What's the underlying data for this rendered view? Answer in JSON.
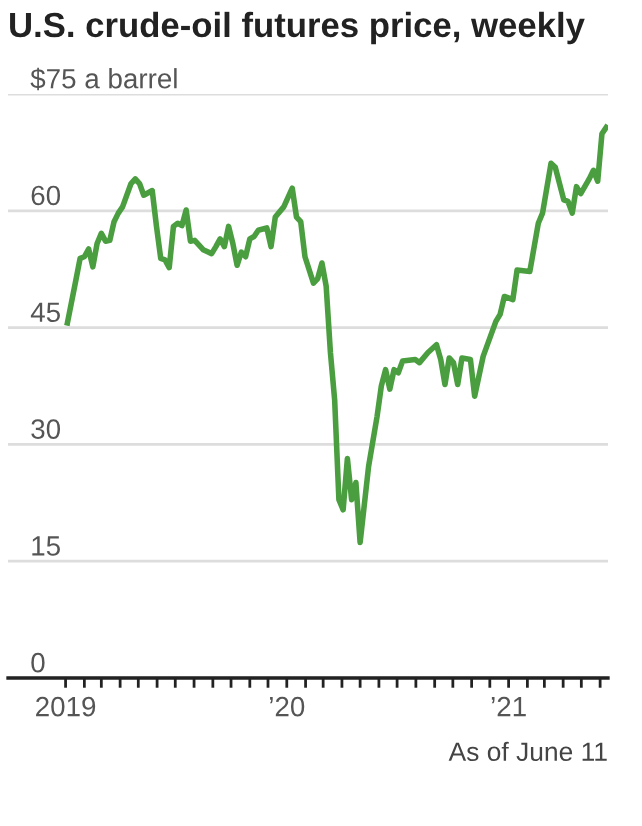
{
  "chart_data": {
    "type": "line",
    "title": "U.S. crude-oil futures price, weekly",
    "x": [
      "2019-01-04",
      "2019-01-18",
      "2019-01-25",
      "2019-02-01",
      "2019-02-08",
      "2019-02-15",
      "2019-02-22",
      "2019-03-01",
      "2019-03-08",
      "2019-03-15",
      "2019-03-22",
      "2019-03-29",
      "2019-04-05",
      "2019-04-19",
      "2019-04-26",
      "2019-05-03",
      "2019-05-10",
      "2019-05-24",
      "2019-05-31",
      "2019-06-07",
      "2019-06-14",
      "2019-06-21",
      "2019-06-28",
      "2019-07-05",
      "2019-07-12",
      "2019-07-19",
      "2019-07-26",
      "2019-08-02",
      "2019-08-16",
      "2019-08-30",
      "2019-09-06",
      "2019-09-13",
      "2019-09-20",
      "2019-09-27",
      "2019-10-04",
      "2019-10-11",
      "2019-10-18",
      "2019-10-25",
      "2019-11-01",
      "2019-11-08",
      "2019-11-15",
      "2019-11-29",
      "2019-12-06",
      "2019-12-13",
      "2019-12-27",
      "2020-01-10",
      "2020-01-17",
      "2020-01-24",
      "2020-01-31",
      "2020-02-14",
      "2020-02-21",
      "2020-02-28",
      "2020-03-06",
      "2020-03-13",
      "2020-03-20",
      "2020-03-27",
      "2020-04-03",
      "2020-04-10",
      "2020-04-17",
      "2020-04-24",
      "2020-05-01",
      "2020-05-15",
      "2020-05-29",
      "2020-06-05",
      "2020-06-12",
      "2020-06-19",
      "2020-06-26",
      "2020-07-03",
      "2020-07-10",
      "2020-07-31",
      "2020-08-07",
      "2020-08-21",
      "2020-09-04",
      "2020-09-11",
      "2020-09-18",
      "2020-09-25",
      "2020-10-02",
      "2020-10-09",
      "2020-10-16",
      "2020-10-30",
      "2020-11-06",
      "2020-11-20",
      "2020-12-11",
      "2020-12-18",
      "2020-12-25",
      "2021-01-08",
      "2021-01-15",
      "2021-02-05",
      "2021-02-19",
      "2021-02-26",
      "2021-03-12",
      "2021-03-19",
      "2021-04-02",
      "2021-04-09",
      "2021-04-16",
      "2021-04-23",
      "2021-04-30",
      "2021-05-14",
      "2021-05-21",
      "2021-05-28",
      "2021-06-04",
      "2021-06-11"
    ],
    "series": [
      {
        "color": "#4a9e3f",
        "values": [
          45.6,
          51.1,
          53.9,
          54.1,
          55.1,
          52.8,
          55.8,
          57.1,
          56.1,
          56.2,
          58.6,
          59.7,
          60.5,
          63.5,
          64.1,
          63.5,
          62.0,
          62.6,
          58.0,
          53.9,
          53.7,
          52.7,
          58.0,
          58.4,
          58.1,
          60.1,
          56.1,
          56.2,
          55.0,
          54.5,
          55.4,
          56.4,
          55.4,
          58.0,
          55.8,
          53.0,
          54.7,
          54.1,
          56.4,
          56.7,
          57.5,
          57.8,
          55.4,
          59.2,
          60.5,
          62.9,
          59.2,
          58.6,
          54.1,
          50.7,
          51.3,
          53.3,
          50.3,
          41.8,
          35.7,
          22.9,
          21.6,
          28.2,
          22.9,
          25.1,
          17.4,
          27.2,
          33.6,
          37.5,
          39.6,
          37.1,
          39.6,
          39.2,
          40.7,
          40.9,
          40.5,
          41.8,
          42.8,
          40.9,
          37.7,
          41.1,
          40.5,
          37.7,
          41.1,
          40.9,
          36.2,
          41.3,
          45.8,
          46.7,
          49.0,
          48.6,
          52.4,
          52.2,
          58.4,
          59.7,
          66.1,
          65.6,
          61.4,
          61.2,
          59.7,
          63.1,
          62.2,
          64.1,
          65.2,
          63.8,
          69.9,
          70.7
        ]
      }
    ],
    "xlim": [
      "2018-09-28",
      "2021-06-14"
    ],
    "xticks": [
      {
        "value": "2019-01-01",
        "label": "2019"
      },
      {
        "value": "2019-02-01",
        "label": null
      },
      {
        "value": "2019-03-01",
        "label": null
      },
      {
        "value": "2019-04-01",
        "label": null
      },
      {
        "value": "2019-05-01",
        "label": null
      },
      {
        "value": "2019-06-01",
        "label": null
      },
      {
        "value": "2019-07-01",
        "label": null
      },
      {
        "value": "2019-08-01",
        "label": null
      },
      {
        "value": "2019-09-01",
        "label": null
      },
      {
        "value": "2019-10-01",
        "label": null
      },
      {
        "value": "2019-11-01",
        "label": null
      },
      {
        "value": "2019-12-01",
        "label": null
      },
      {
        "value": "2020-01-01",
        "label": "’20"
      },
      {
        "value": "2020-02-01",
        "label": null
      },
      {
        "value": "2020-03-01",
        "label": null
      },
      {
        "value": "2020-04-01",
        "label": null
      },
      {
        "value": "2020-05-01",
        "label": null
      },
      {
        "value": "2020-06-01",
        "label": null
      },
      {
        "value": "2020-07-01",
        "label": null
      },
      {
        "value": "2020-08-01",
        "label": null
      },
      {
        "value": "2020-09-01",
        "label": null
      },
      {
        "value": "2020-10-01",
        "label": null
      },
      {
        "value": "2020-11-01",
        "label": null
      },
      {
        "value": "2020-12-01",
        "label": null
      },
      {
        "value": "2021-01-01",
        "label": "’21"
      },
      {
        "value": "2021-02-01",
        "label": null
      },
      {
        "value": "2021-03-01",
        "label": null
      },
      {
        "value": "2021-04-01",
        "label": null
      },
      {
        "value": "2021-05-01",
        "label": null
      },
      {
        "value": "2021-06-01",
        "label": null
      }
    ],
    "ylim": [
      0,
      75
    ],
    "yticks": [
      0,
      15,
      30,
      45,
      60,
      {
        "value": 75,
        "label": "$75 a barrel"
      }
    ],
    "grid": "y",
    "marker": "none",
    "line_style": "solid",
    "annotations": [
      "As of June 11"
    ]
  }
}
